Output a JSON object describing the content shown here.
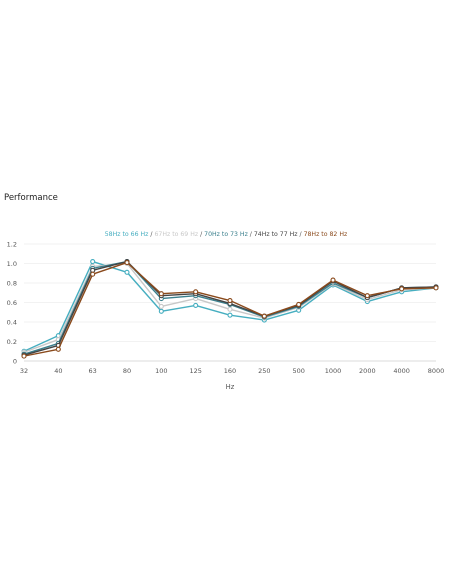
{
  "header": {
    "title": "Performance"
  },
  "chart_data": {
    "type": "line",
    "title": "",
    "xlabel": "Hz",
    "ylabel": "",
    "ylim": [
      0,
      1.2
    ],
    "yticks": [
      "0",
      "0.2",
      "0.4",
      "0.6",
      "0.8",
      "1.0",
      "1.2"
    ],
    "categories": [
      "32",
      "40",
      "63",
      "80",
      "100",
      "125",
      "160",
      "250",
      "500",
      "1000",
      "2000",
      "4000",
      "8000"
    ],
    "legend_position": "top-center",
    "grid": "horizontal",
    "series": [
      {
        "name": "58Hz to 66 Hz",
        "color": "#46aec0",
        "values": [
          0.1,
          0.26,
          1.02,
          0.91,
          0.51,
          0.57,
          0.47,
          0.42,
          0.52,
          0.78,
          0.61,
          0.71,
          0.75
        ]
      },
      {
        "name": "67Hz to 69 Hz",
        "color": "#c8c8c8",
        "values": [
          0.09,
          0.22,
          0.97,
          1.0,
          0.56,
          0.64,
          0.53,
          0.44,
          0.55,
          0.79,
          0.63,
          0.73,
          0.75
        ]
      },
      {
        "name": "70Hz to 73 Hz",
        "color": "#3a7f8c",
        "values": [
          0.07,
          0.18,
          0.95,
          1.02,
          0.64,
          0.67,
          0.58,
          0.45,
          0.56,
          0.8,
          0.65,
          0.75,
          0.76
        ]
      },
      {
        "name": "74Hz to 77 Hz",
        "color": "#444444",
        "values": [
          0.06,
          0.16,
          0.93,
          1.02,
          0.67,
          0.69,
          0.59,
          0.46,
          0.57,
          0.82,
          0.65,
          0.75,
          0.76
        ]
      },
      {
        "name": "78Hz to 82 Hz",
        "color": "#8a4a1c",
        "values": [
          0.05,
          0.12,
          0.89,
          1.01,
          0.69,
          0.71,
          0.62,
          0.46,
          0.58,
          0.83,
          0.67,
          0.74,
          0.75
        ]
      }
    ]
  }
}
